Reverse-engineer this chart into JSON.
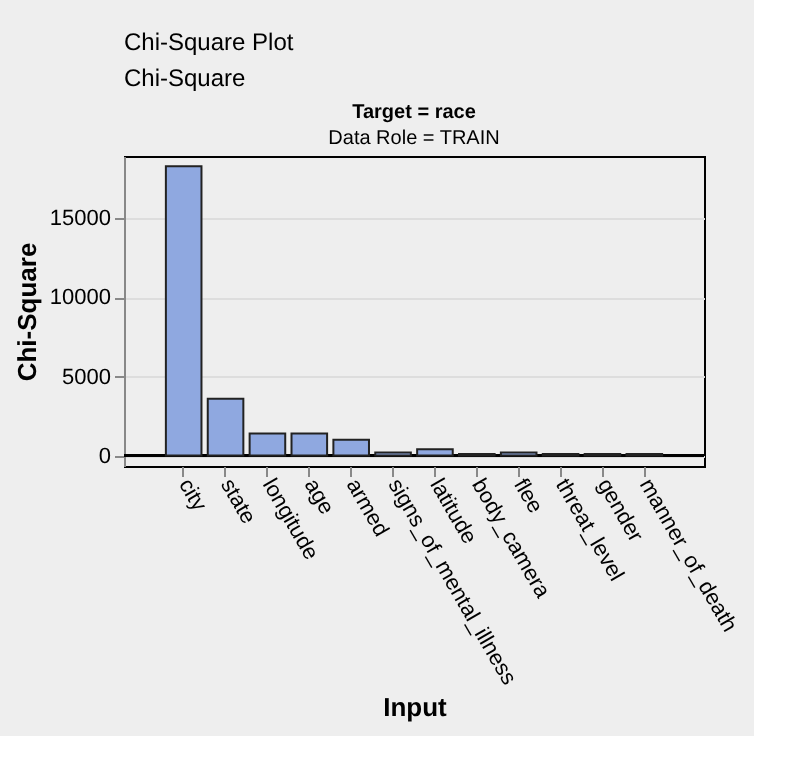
{
  "chart_data": {
    "type": "bar",
    "title": "Target = race",
    "subtitle": "Data Role = TRAIN",
    "xlabel": "Input",
    "ylabel": "Chi-Square",
    "annotations": [
      "Chi-Square Plot",
      "Chi-Square"
    ],
    "categories": [
      "city",
      "state",
      "longitude",
      "age",
      "armed",
      "signs_of_mental_illness",
      "latitude",
      "body_camera",
      "flee",
      "threat_level",
      "gender",
      "manner_of_death"
    ],
    "values": [
      18300,
      3600,
      1400,
      1400,
      1000,
      200,
      400,
      100,
      200,
      100,
      100,
      100
    ],
    "color": "#8fa8e0",
    "ylim": [
      -660,
      18950
    ],
    "yticks": [
      0,
      5000,
      10000,
      15000
    ],
    "grid": "y",
    "ref_lines": [
      {
        "axis": "y",
        "value": 0
      }
    ]
  }
}
